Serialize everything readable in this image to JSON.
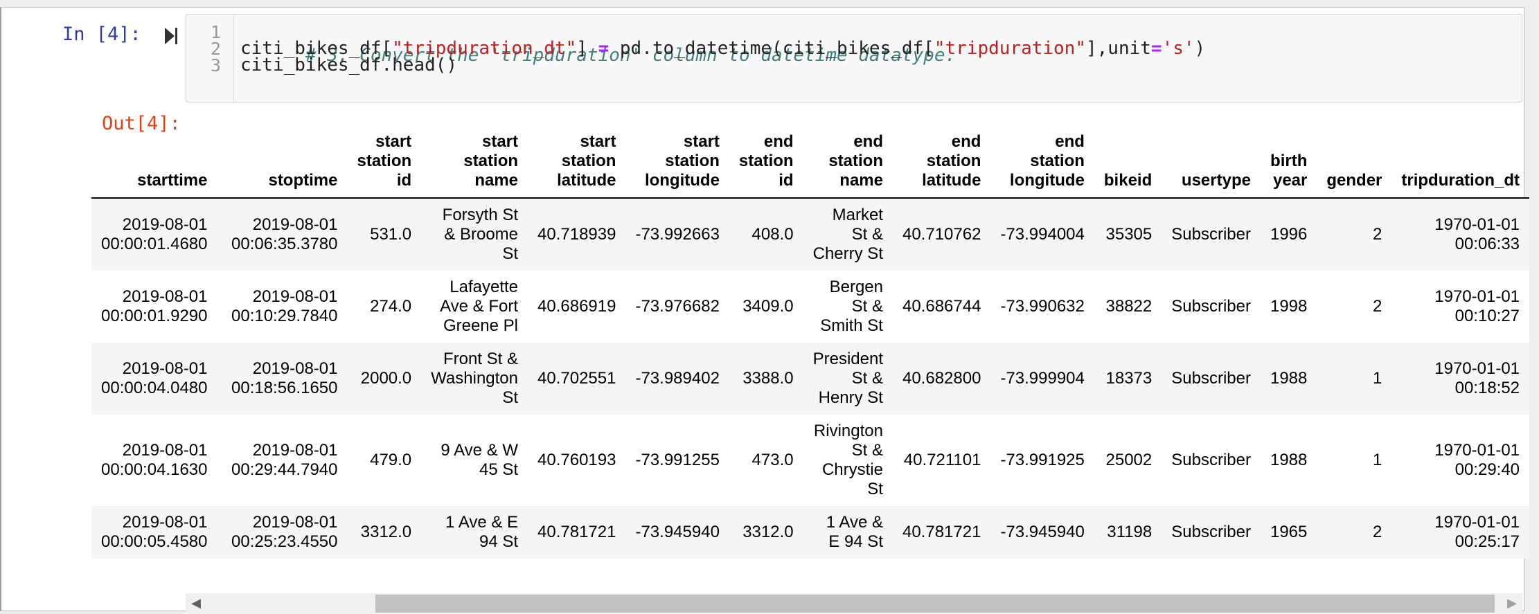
{
  "input_cell": {
    "prompt": "In [4]:",
    "run_icon": "run-cell-icon",
    "line_numbers": [
      "1",
      "2",
      "3"
    ],
    "code": {
      "line1_comment": "# 3. Convert the 'tripduration' column to datetime datatype.",
      "line2_a": "citi_bikes_df[",
      "line2_b": "\"tripduration_dt\"",
      "line2_c": "] ",
      "line2_d": "=",
      "line2_e": " pd.to_datetime(citi_bikes_df[",
      "line2_f": "\"tripduration\"",
      "line2_g": "],unit",
      "line2_h": "=",
      "line2_i": "'s'",
      "line2_j": ")",
      "line3": "citi_bikes_df.head()"
    }
  },
  "output_cell": {
    "prompt": "Out[4]:",
    "table": {
      "headers": [
        [
          "starttime"
        ],
        [
          "stoptime"
        ],
        [
          "start",
          "station",
          "id"
        ],
        [
          "start",
          "station",
          "name"
        ],
        [
          "start",
          "station",
          "latitude"
        ],
        [
          "start",
          "station",
          "longitude"
        ],
        [
          "end",
          "station",
          "id"
        ],
        [
          "end",
          "station",
          "name"
        ],
        [
          "end",
          "station",
          "latitude"
        ],
        [
          "end",
          "station",
          "longitude"
        ],
        [
          "bikeid"
        ],
        [
          "usertype"
        ],
        [
          "birth",
          "year"
        ],
        [
          "gender"
        ],
        [
          "tripduration_dt"
        ]
      ],
      "rows": [
        {
          "starttime": [
            "2019-08-01",
            "00:00:01.4680"
          ],
          "stoptime": [
            "2019-08-01",
            "00:06:35.3780"
          ],
          "start_station_id": "531.0",
          "start_station_name": [
            "Forsyth St",
            "& Broome",
            "St"
          ],
          "start_lat": "40.718939",
          "start_lon": "-73.992663",
          "end_station_id": "408.0",
          "end_station_name": [
            "Market",
            "St &",
            "Cherry St"
          ],
          "end_lat": "40.710762",
          "end_lon": "-73.994004",
          "bikeid": "35305",
          "usertype": "Subscriber",
          "birth_year": "1996",
          "gender": "2",
          "tripduration_dt": [
            "1970-01-01",
            "00:06:33"
          ]
        },
        {
          "starttime": [
            "2019-08-01",
            "00:00:01.9290"
          ],
          "stoptime": [
            "2019-08-01",
            "00:10:29.7840"
          ],
          "start_station_id": "274.0",
          "start_station_name": [
            "Lafayette",
            "Ave & Fort",
            "Greene Pl"
          ],
          "start_lat": "40.686919",
          "start_lon": "-73.976682",
          "end_station_id": "3409.0",
          "end_station_name": [
            "Bergen",
            "St &",
            "Smith St"
          ],
          "end_lat": "40.686744",
          "end_lon": "-73.990632",
          "bikeid": "38822",
          "usertype": "Subscriber",
          "birth_year": "1998",
          "gender": "2",
          "tripduration_dt": [
            "1970-01-01",
            "00:10:27"
          ]
        },
        {
          "starttime": [
            "2019-08-01",
            "00:00:04.0480"
          ],
          "stoptime": [
            "2019-08-01",
            "00:18:56.1650"
          ],
          "start_station_id": "2000.0",
          "start_station_name": [
            "Front St &",
            "Washington",
            "St"
          ],
          "start_lat": "40.702551",
          "start_lon": "-73.989402",
          "end_station_id": "3388.0",
          "end_station_name": [
            "President",
            "St &",
            "Henry St"
          ],
          "end_lat": "40.682800",
          "end_lon": "-73.999904",
          "bikeid": "18373",
          "usertype": "Subscriber",
          "birth_year": "1988",
          "gender": "1",
          "tripduration_dt": [
            "1970-01-01",
            "00:18:52"
          ]
        },
        {
          "starttime": [
            "2019-08-01",
            "00:00:04.1630"
          ],
          "stoptime": [
            "2019-08-01",
            "00:29:44.7940"
          ],
          "start_station_id": "479.0",
          "start_station_name": [
            "9 Ave & W",
            "45 St"
          ],
          "start_lat": "40.760193",
          "start_lon": "-73.991255",
          "end_station_id": "473.0",
          "end_station_name": [
            "Rivington",
            "St &",
            "Chrystie",
            "St"
          ],
          "end_lat": "40.721101",
          "end_lon": "-73.991925",
          "bikeid": "25002",
          "usertype": "Subscriber",
          "birth_year": "1988",
          "gender": "1",
          "tripduration_dt": [
            "1970-01-01",
            "00:29:40"
          ]
        },
        {
          "starttime": [
            "2019-08-01",
            "00:00:05.4580"
          ],
          "stoptime": [
            "2019-08-01",
            "00:25:23.4550"
          ],
          "start_station_id": "3312.0",
          "start_station_name": [
            "1 Ave & E",
            "94 St"
          ],
          "start_lat": "40.781721",
          "start_lon": "-73.945940",
          "end_station_id": "3312.0",
          "end_station_name": [
            "1 Ave &",
            "E 94 St"
          ],
          "end_lat": "40.781721",
          "end_lon": "-73.945940",
          "bikeid": "31198",
          "usertype": "Subscriber",
          "birth_year": "1965",
          "gender": "2",
          "tripduration_dt": [
            "1970-01-01",
            "00:25:17"
          ]
        }
      ]
    },
    "scrollbar": {
      "left_arrow": "◀",
      "right_arrow": "▶"
    }
  }
}
